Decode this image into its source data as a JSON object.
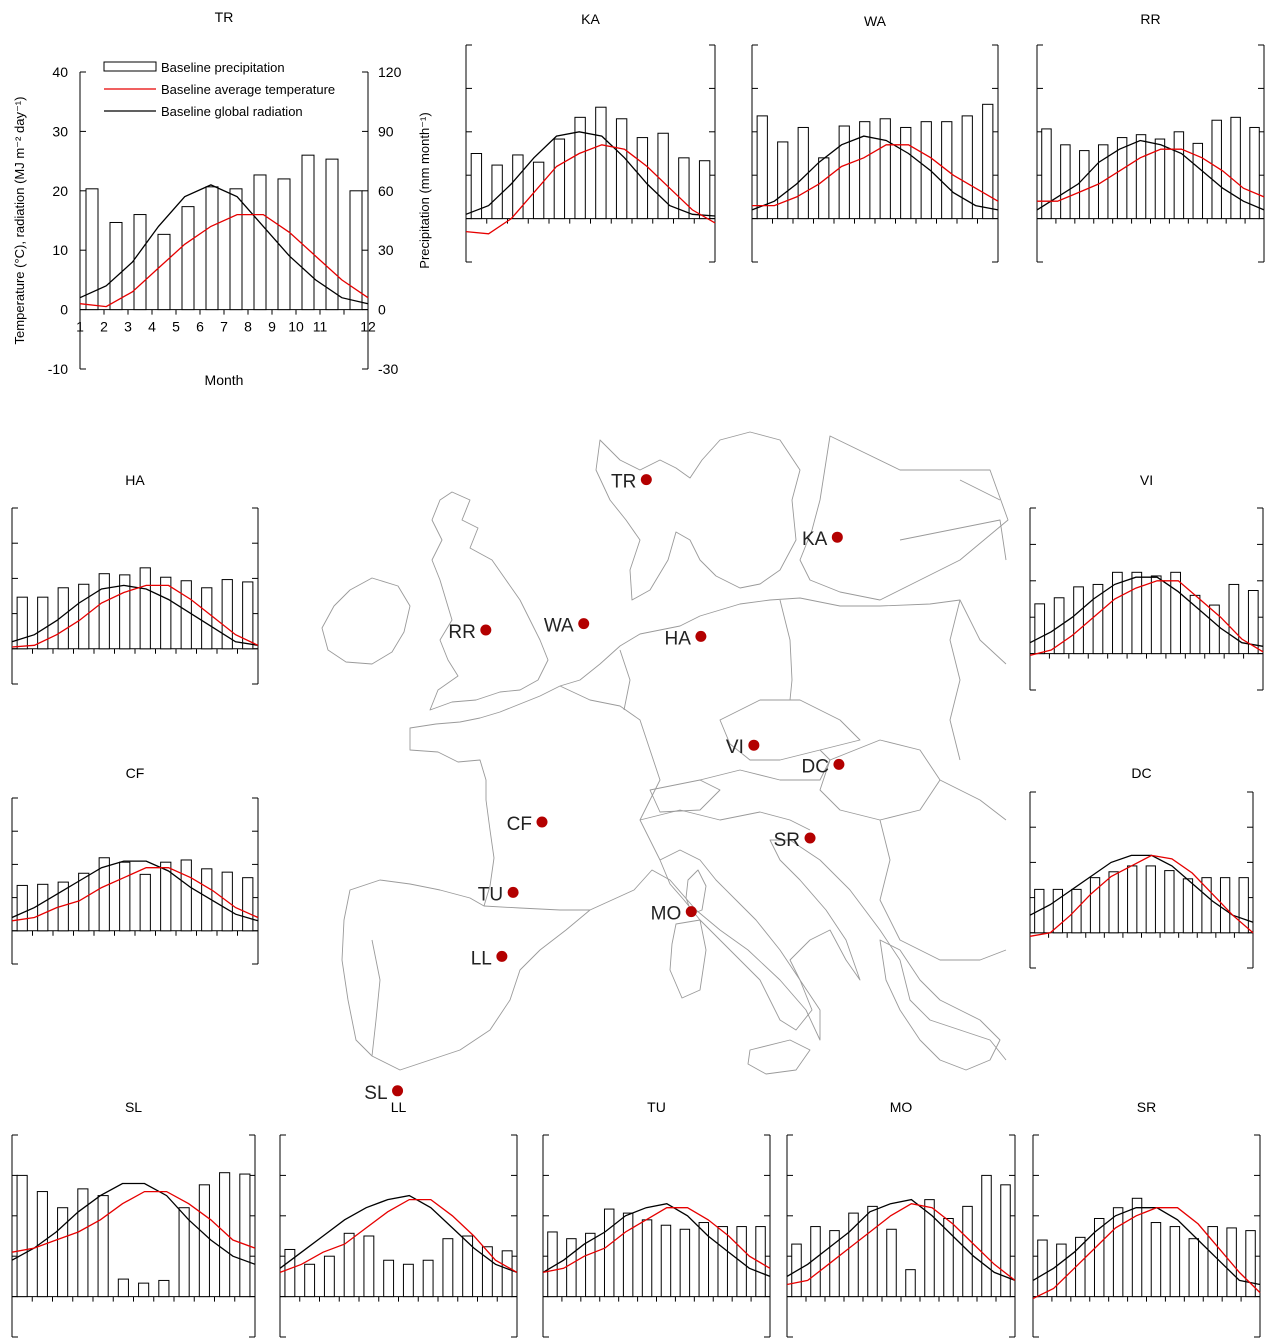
{
  "colors": {
    "precip": "#000000",
    "temperature": "#e60000",
    "radiation": "#000000",
    "station": "#b30000",
    "map_line": "#9a9a9a"
  },
  "legend": {
    "precipitation": "Baseline precipitation",
    "temperature": "Baseline average temperature",
    "radiation": "Baseline global radiation"
  },
  "axes": {
    "ylabel_left": "Temperature (°C), radiation (MJ m⁻² day⁻¹)",
    "ylabel_right": "Precipitation (mm month⁻¹)",
    "xlabel": "Month",
    "left_ticks": [
      "40",
      "30",
      "20",
      "10",
      "0",
      "-10"
    ],
    "right_ticks": [
      "120",
      "90",
      "60",
      "30",
      "0",
      "-30"
    ],
    "month_ticks": [
      "1",
      "2",
      "3",
      "4",
      "5",
      "6",
      "7",
      "8",
      "9",
      "10",
      "11",
      "12"
    ]
  },
  "chart_data": {
    "type": "bar+line",
    "x": [
      1,
      2,
      3,
      4,
      5,
      6,
      7,
      8,
      9,
      10,
      11,
      12
    ],
    "ylim_left": [
      -10,
      40
    ],
    "ylim_right": [
      -30,
      120
    ],
    "sites": [
      {
        "name": "TR",
        "precip": [
          61,
          44,
          48,
          38,
          52,
          62,
          61,
          68,
          66,
          78,
          76,
          60
        ],
        "temp": [
          1,
          0.5,
          3,
          7,
          11,
          14,
          16,
          16,
          13,
          9,
          5,
          2
        ],
        "rad": [
          2,
          4,
          8,
          14,
          19,
          21,
          19,
          14,
          9,
          5,
          2,
          1
        ]
      },
      {
        "name": "KA",
        "precip": [
          45,
          37,
          44,
          39,
          55,
          70,
          77,
          69,
          56,
          59,
          42,
          40
        ],
        "temp": [
          -3,
          -3.5,
          0,
          6,
          12,
          15,
          17,
          16,
          12,
          7,
          2,
          -1
        ],
        "rad": [
          1,
          3,
          8,
          14,
          19,
          20,
          19,
          14,
          8,
          3,
          1,
          0.6
        ]
      },
      {
        "name": "WA",
        "precip": [
          71,
          53,
          63,
          42,
          64,
          67,
          69,
          63,
          67,
          67,
          71,
          79
        ],
        "temp": [
          3,
          3,
          5,
          8,
          12,
          14,
          17,
          17,
          14,
          10,
          7,
          4
        ],
        "rad": [
          2,
          4,
          8,
          13,
          17,
          19,
          18,
          15,
          11,
          6,
          3,
          2
        ]
      },
      {
        "name": "RR",
        "precip": [
          62,
          51,
          47,
          51,
          56,
          58,
          55,
          60,
          52,
          68,
          70,
          63
        ],
        "temp": [
          4,
          4,
          6,
          8,
          11,
          14,
          16,
          16,
          14,
          11,
          7,
          5
        ],
        "rad": [
          2,
          5,
          8,
          13,
          16,
          18,
          17,
          15,
          11,
          7,
          4,
          2
        ]
      },
      {
        "name": "HA",
        "precip": [
          44,
          44,
          52,
          55,
          64,
          63,
          69,
          61,
          58,
          52,
          59,
          57
        ],
        "temp": [
          0.5,
          1,
          4,
          8,
          13,
          16,
          18,
          18,
          14,
          9,
          4,
          1
        ],
        "rad": [
          2,
          4,
          8,
          13,
          17,
          18,
          17,
          14,
          10,
          6,
          2,
          1
        ]
      },
      {
        "name": "VI",
        "precip": [
          41,
          46,
          55,
          57,
          67,
          67,
          64,
          67,
          48,
          40,
          57,
          52
        ],
        "temp": [
          -0.5,
          1,
          5,
          10,
          15,
          18,
          20,
          20,
          15,
          10,
          4,
          0.5
        ],
        "rad": [
          3,
          6,
          10,
          15,
          19,
          21,
          21,
          17,
          12,
          7,
          3,
          2
        ]
      },
      {
        "name": "CF",
        "precip": [
          41,
          42,
          44,
          52,
          66,
          62,
          51,
          62,
          64,
          56,
          53,
          48
        ],
        "temp": [
          3,
          4,
          7,
          9,
          13,
          16,
          19,
          19,
          16,
          12,
          7,
          4
        ],
        "rad": [
          4,
          7,
          11,
          15,
          19,
          21,
          21,
          18,
          13,
          9,
          5,
          3
        ]
      },
      {
        "name": "DC",
        "precip": [
          37,
          37,
          37,
          47,
          52,
          57,
          57,
          53,
          46,
          47,
          47,
          47
        ],
        "temp": [
          -1,
          0,
          5,
          11,
          16,
          19,
          22,
          21,
          17,
          11,
          5,
          0
        ],
        "rad": [
          5,
          8,
          12,
          16,
          20,
          22,
          22,
          19,
          14,
          9,
          5,
          3
        ]
      },
      {
        "name": "SL",
        "precip": [
          90,
          78,
          66,
          80,
          75,
          13,
          10,
          12,
          66,
          83,
          92,
          91
        ],
        "temp": [
          11,
          12,
          14,
          16,
          19,
          23,
          26,
          26,
          23,
          19,
          14,
          12
        ],
        "rad": [
          9,
          12,
          16,
          21,
          25,
          28,
          28,
          25,
          19,
          14,
          10,
          8
        ]
      },
      {
        "name": "LL",
        "precip": [
          35,
          24,
          30,
          47,
          45,
          27,
          24,
          27,
          43,
          45,
          37,
          34
        ],
        "temp": [
          6,
          8,
          11,
          13,
          17,
          21,
          24,
          24,
          20,
          15,
          9,
          6
        ],
        "rad": [
          7,
          11,
          15,
          19,
          22,
          24,
          25,
          22,
          17,
          12,
          8,
          6
        ]
      },
      {
        "name": "TU",
        "precip": [
          48,
          43,
          47,
          65,
          62,
          57,
          53,
          50,
          55,
          52,
          52,
          52
        ],
        "temp": [
          6,
          7,
          10,
          12,
          16,
          19,
          22,
          22,
          19,
          15,
          10,
          7
        ],
        "rad": [
          6,
          9,
          13,
          16,
          20,
          22,
          23,
          20,
          15,
          11,
          7,
          5
        ]
      },
      {
        "name": "MO",
        "precip": [
          39,
          52,
          49,
          62,
          67,
          50,
          20,
          72,
          58,
          67,
          90,
          83
        ],
        "temp": [
          3,
          4,
          8,
          12,
          16,
          20,
          23,
          22,
          18,
          13,
          8,
          4
        ],
        "rad": [
          5,
          8,
          12,
          16,
          21,
          23,
          24,
          20,
          15,
          10,
          6,
          4
        ]
      },
      {
        "name": "SR",
        "precip": [
          42,
          39,
          44,
          58,
          66,
          73,
          55,
          52,
          43,
          52,
          51,
          49
        ],
        "temp": [
          -0.5,
          2,
          7,
          12,
          17,
          20,
          22,
          22,
          18,
          12,
          6,
          1
        ],
        "rad": [
          4,
          7,
          11,
          16,
          20,
          22,
          22,
          19,
          14,
          9,
          4,
          3
        ]
      }
    ]
  },
  "map": {
    "stations": [
      {
        "label": "TR",
        "lon": 9.6,
        "lat": 56.5
      },
      {
        "label": "KA",
        "lon": 21.5,
        "lat": 54.7
      },
      {
        "label": "RR",
        "lon": -0.4,
        "lat": 51.8
      },
      {
        "label": "WA",
        "lon": 5.7,
        "lat": 52.0
      },
      {
        "label": "HA",
        "lon": 13.0,
        "lat": 51.6
      },
      {
        "label": "VI",
        "lon": 16.3,
        "lat": 48.2
      },
      {
        "label": "DC",
        "lon": 21.6,
        "lat": 47.6
      },
      {
        "label": "CF",
        "lon": 3.1,
        "lat": 45.8
      },
      {
        "label": "SR",
        "lon": 19.8,
        "lat": 45.3
      },
      {
        "label": "TU",
        "lon": 1.3,
        "lat": 43.6
      },
      {
        "label": "MO",
        "lon": 12.4,
        "lat": 43.0
      },
      {
        "label": "LL",
        "lon": 0.6,
        "lat": 41.6
      },
      {
        "label": "SL",
        "lon": -5.9,
        "lat": 37.4
      }
    ]
  }
}
